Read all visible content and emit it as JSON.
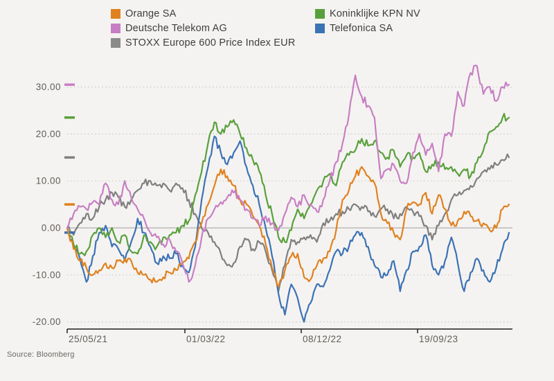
{
  "legend": {
    "columns": [
      {
        "items": [
          {
            "label": "Orange SA",
            "color": "#e0811f"
          },
          {
            "label": "Deutsche Telekom AG",
            "color": "#c77fc4"
          },
          {
            "label": "STOXX Europe 600 Price Index EUR",
            "color": "#8a8a8a"
          }
        ]
      },
      {
        "items": [
          {
            "label": "Koninklijke KPN NV",
            "color": "#58a03c"
          },
          {
            "label": "Telefonica SA",
            "color": "#3b72b5"
          }
        ]
      }
    ]
  },
  "source_note": "Source: Bloomberg",
  "chart_data": {
    "type": "line",
    "title": "",
    "xlabel": "",
    "ylabel": "",
    "ylim": [
      -22,
      36
    ],
    "grid": "dotted-horizontal",
    "baseline_value": 0,
    "legend_position": "top",
    "y_ticks": [
      {
        "label": "30.00",
        "value": 30
      },
      {
        "label": "20.00",
        "value": 20
      },
      {
        "label": "10.00",
        "value": 10
      },
      {
        "label": "0.00",
        "value": 0
      },
      {
        "label": "-10.00",
        "value": -10
      },
      {
        "label": "-20.00",
        "value": -20
      }
    ],
    "x_tick_labels": [
      "25/05/21",
      "01/03/22",
      "08/12/22",
      "19/09/23"
    ],
    "series": [
      {
        "name": "STOXX Europe 600 Price Index EUR",
        "color": "#7f7f7f",
        "last_value": 15,
        "values": [
          0,
          -1.5,
          1,
          3,
          2,
          4.5,
          6,
          7.5,
          6.5,
          4.5,
          6,
          8,
          9.5,
          10,
          9,
          9.5,
          8,
          9.5,
          8.5,
          6,
          3,
          0,
          -1,
          -3,
          -5.5,
          -8,
          -7.5,
          -4,
          -2.5,
          -4.5,
          -3,
          -5,
          -9,
          -13.5,
          -8,
          -2.5,
          -3,
          -2,
          -1.5,
          -3,
          1,
          1.5,
          3,
          3.5,
          4,
          5,
          4.5,
          3.5,
          2.5,
          4,
          4,
          2,
          3,
          4.5,
          3.5,
          2.5,
          0.5,
          -2.5,
          0.5,
          3,
          6,
          7,
          8,
          9,
          10.5,
          12,
          12.5,
          13.5,
          14.5,
          15
        ]
      },
      {
        "name": "Telefonica SA",
        "color": "#3b72b5",
        "last_value": -1,
        "values": [
          0,
          -4,
          -6.5,
          -11.5,
          -6,
          -1,
          0.5,
          -4,
          -4.5,
          -7,
          -3,
          2,
          -1,
          -4,
          -7.5,
          -6,
          -6.5,
          -5.5,
          -8,
          -9.5,
          -4,
          6,
          13,
          19.5,
          16,
          13.5,
          16,
          18.5,
          13,
          9,
          5,
          0,
          -6,
          -14,
          -18.5,
          -12,
          -15,
          -20,
          -16,
          -12,
          -12.5,
          -9,
          -5,
          -5.5,
          -4,
          -1.5,
          -1,
          -4,
          -8,
          -10.5,
          -10,
          -7,
          -13.5,
          -9,
          -5,
          -4,
          -1.5,
          -8,
          -10,
          -7,
          -2,
          -7.5,
          -13.5,
          -9.5,
          -6.5,
          -9,
          -11.5,
          -8.5,
          -4.5,
          -1
        ]
      },
      {
        "name": "Koninklijke KPN NV",
        "color": "#58a03c",
        "last_value": 23.5,
        "values": [
          0,
          -3.5,
          -5.5,
          -5,
          -1.5,
          0,
          -2,
          0,
          -3,
          -1.5,
          -5,
          -5.5,
          -1.5,
          -3,
          -4,
          -2,
          -1.5,
          -1,
          0.5,
          1.5,
          7,
          12,
          18,
          22.5,
          20,
          21.5,
          23,
          20,
          17,
          14.5,
          12,
          7,
          3,
          -2,
          -3,
          -0.5,
          4,
          2,
          5,
          8,
          10,
          11.5,
          9,
          14,
          15.5,
          16.5,
          19,
          17.5,
          18.5,
          16,
          15,
          16.5,
          13,
          15.5,
          15,
          16,
          12,
          13.5,
          14,
          12.5,
          13,
          11.5,
          12.5,
          11,
          14,
          16.5,
          20.5,
          21.5,
          23.5,
          23.5
        ]
      },
      {
        "name": "Orange SA",
        "color": "#e0811f",
        "last_value": 5,
        "values": [
          0,
          -4.5,
          -7,
          -8.5,
          -10,
          -9,
          -7.5,
          -8.5,
          -7,
          -6.5,
          -7,
          -9.5,
          -10,
          -11,
          -11.5,
          -10.5,
          -9.5,
          -9,
          -7.5,
          -6.5,
          -3,
          1,
          5,
          9,
          12.5,
          11,
          9,
          6,
          5,
          2.5,
          0.5,
          -3.5,
          -8.5,
          -12.5,
          -9,
          -6,
          -5.5,
          -10.5,
          -11,
          -8,
          -6.5,
          -5,
          -0.5,
          6,
          8,
          11,
          13,
          11,
          9.5,
          3,
          1,
          -1,
          -2.5,
          4,
          5.5,
          5,
          7.5,
          3,
          7,
          4,
          0.5,
          1.5,
          3.5,
          2.5,
          1.5,
          1,
          -0.5,
          0,
          4,
          5
        ]
      },
      {
        "name": "Deutsche Telekom AG",
        "color": "#c77fc4",
        "last_value": 30.5,
        "values": [
          0,
          3,
          4.5,
          4,
          5.5,
          5,
          9.5,
          6,
          5,
          10,
          6.5,
          4,
          2,
          -1,
          -2,
          -3.5,
          -2.5,
          -5,
          -7.5,
          -11.5,
          -8,
          -2,
          2,
          4,
          5.5,
          6.5,
          7.5,
          6,
          4,
          2,
          0.5,
          2.5,
          1,
          -0.5,
          3,
          6.5,
          4.5,
          7,
          5,
          3.5,
          6,
          10,
          14,
          18,
          24,
          32.5,
          28,
          26,
          23.5,
          10.5,
          12.5,
          13.5,
          10,
          9.5,
          16,
          20,
          15.5,
          18,
          12,
          20,
          19.5,
          29,
          26,
          33,
          34.5,
          28.5,
          30,
          27,
          30,
          30.5
        ]
      }
    ]
  }
}
